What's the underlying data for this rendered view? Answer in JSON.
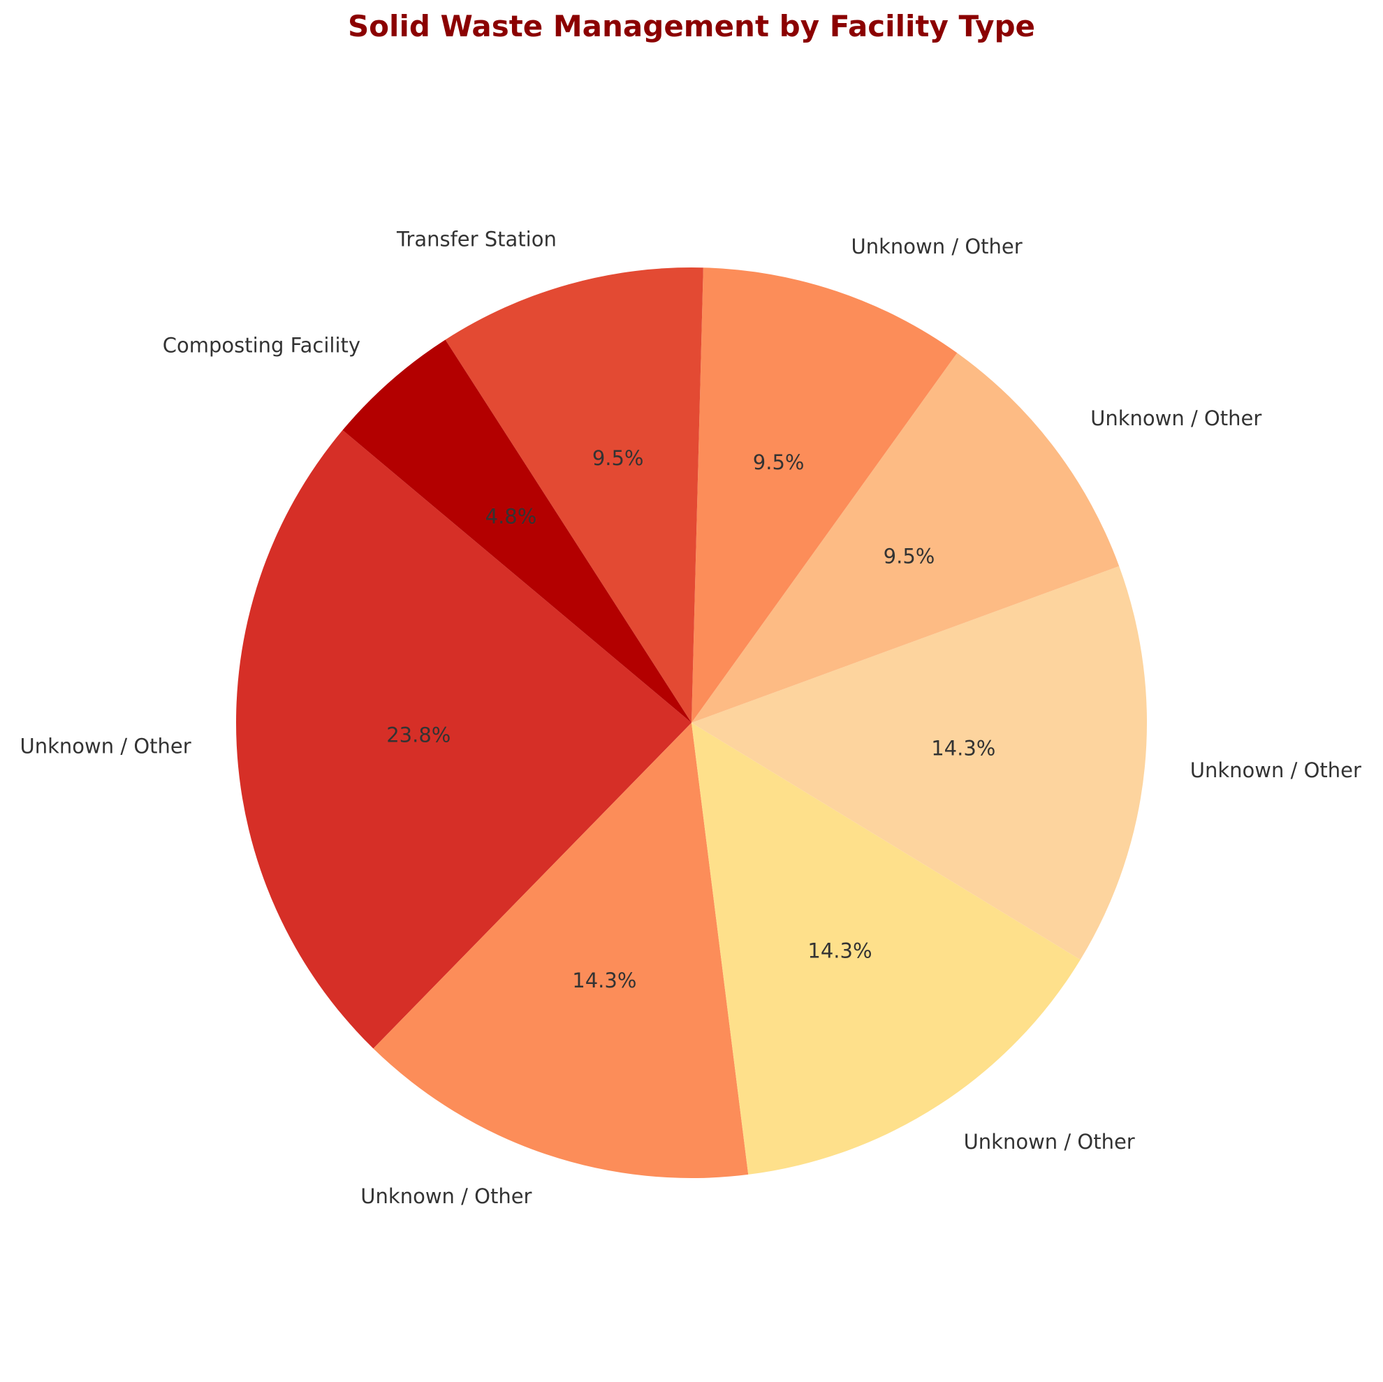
{
  "chart_data": {
    "type": "pie",
    "title": "Solid Waste Management by Facility Type",
    "start_angle_deg": 140,
    "direction": "counterclockwise",
    "slices": [
      {
        "label": "Unknown / Other",
        "value": 23.8,
        "pct_label": "23.8%",
        "color": "#d62f27"
      },
      {
        "label": "Unknown / Other",
        "value": 14.3,
        "pct_label": "14.3%",
        "color": "#fc8d59"
      },
      {
        "label": "Unknown / Other",
        "value": 14.3,
        "pct_label": "14.3%",
        "color": "#fee08b"
      },
      {
        "label": "Unknown / Other",
        "value": 14.3,
        "pct_label": "14.3%",
        "color": "#fdd49e"
      },
      {
        "label": "Unknown / Other",
        "value": 9.5,
        "pct_label": "9.5%",
        "color": "#fdbb84"
      },
      {
        "label": "Unknown / Other",
        "value": 9.5,
        "pct_label": "9.5%",
        "color": "#fc8d59"
      },
      {
        "label": "Transfer Station",
        "value": 9.5,
        "pct_label": "9.5%",
        "color": "#e34a33"
      },
      {
        "label": "Composting Facility",
        "value": 4.8,
        "pct_label": "4.8%",
        "color": "#b30000"
      }
    ]
  }
}
